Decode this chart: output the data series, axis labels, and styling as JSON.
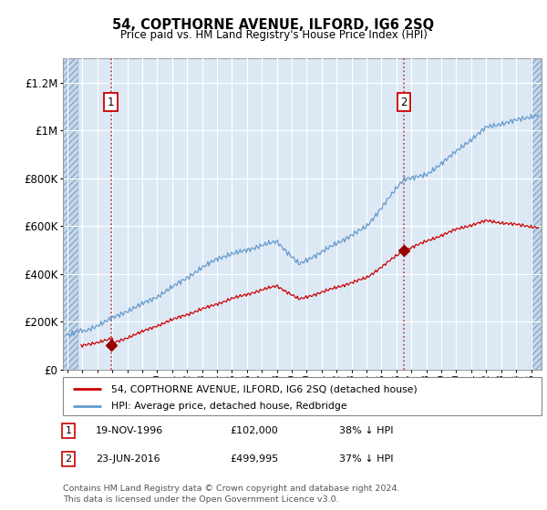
{
  "title": "54, COPTHORNE AVENUE, ILFORD, IG6 2SQ",
  "subtitle": "Price paid vs. HM Land Registry's House Price Index (HPI)",
  "plot_bg_color": "#dce9f5",
  "hatch_color": "#c5d8ec",
  "grid_color": "#b8cfe0",
  "hpi_line_color": "#6699cc",
  "price_line_color": "#cc0000",
  "marker_color": "#990000",
  "vline_color": "#cc3333",
  "purchase1_year": 1996.9,
  "purchase1_price": 102000,
  "purchase2_year": 2016.5,
  "purchase2_price": 499995,
  "ylim": [
    0,
    1300000
  ],
  "yticks": [
    0,
    200000,
    400000,
    600000,
    800000,
    1000000,
    1200000
  ],
  "ytick_labels": [
    "£0",
    "£200K",
    "£400K",
    "£600K",
    "£800K",
    "£1M",
    "£1.2M"
  ],
  "xmin": 1993.7,
  "xmax": 2025.7,
  "hatch_left_xmax": 1994.75,
  "hatch_right_xmin": 2025.0,
  "legend1_label": "54, COPTHORNE AVENUE, ILFORD, IG6 2SQ (detached house)",
  "legend2_label": "HPI: Average price, detached house, Redbridge",
  "table_rows": [
    {
      "num": "1",
      "date": "19-NOV-1996",
      "price": "£102,000",
      "pct": "38% ↓ HPI"
    },
    {
      "num": "2",
      "date": "23-JUN-2016",
      "price": "£499,995",
      "pct": "37% ↓ HPI"
    }
  ],
  "footer": "Contains HM Land Registry data © Crown copyright and database right 2024.\nThis data is licensed under the Open Government Licence v3.0."
}
